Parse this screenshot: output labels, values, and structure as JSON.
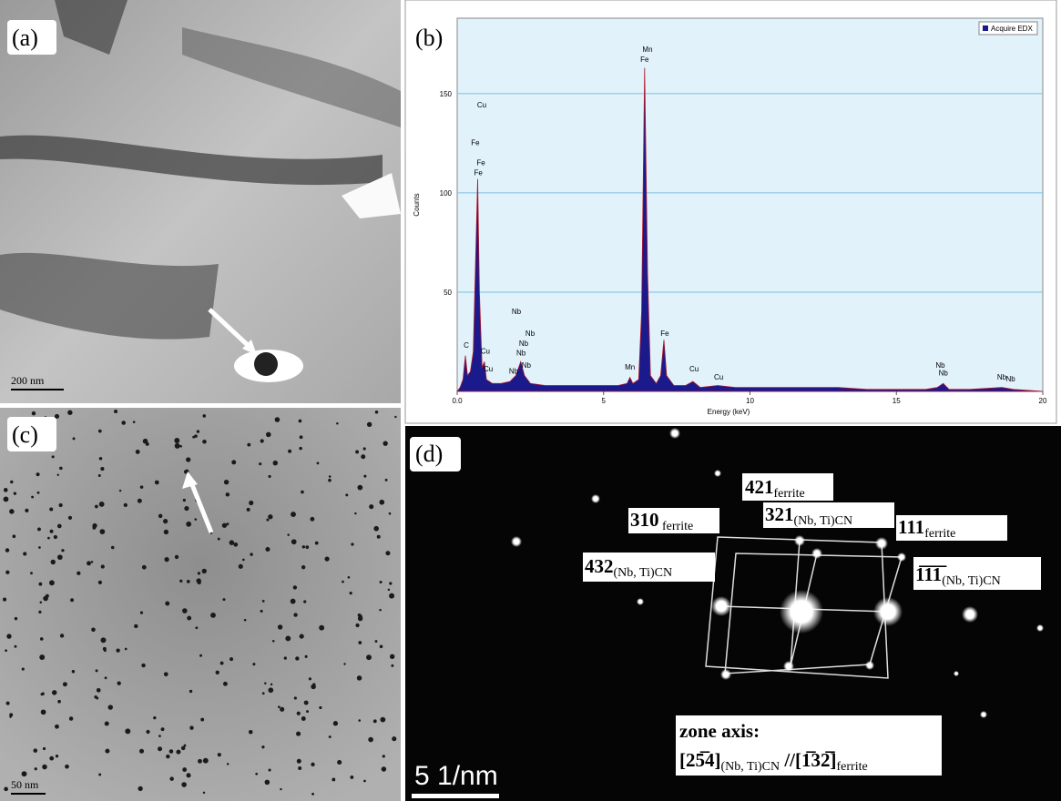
{
  "panels": {
    "a": {
      "label": "(a)",
      "scale_bar": "200 nm"
    },
    "b": {
      "label": "(b)"
    },
    "c": {
      "label": "(c)",
      "scale_bar": "50 nm"
    },
    "d": {
      "label": "(d)",
      "spots": [
        {
          "index": "421",
          "phase": "ferrite"
        },
        {
          "index": "310",
          "phase": " ferrite"
        },
        {
          "index": "321",
          "phase": "(Nb, Ti)CN"
        },
        {
          "index": "111",
          "phase": "ferrite"
        },
        {
          "index": "432",
          "phase": "(Nb, Ti)CN"
        },
        {
          "index": "1̅1̅1̅",
          "phase": "(Nb, Ti)CN"
        }
      ],
      "zone_axis": {
        "title": "zone axis:",
        "dir1": "[25̅4]",
        "phase1": "(Nb, Ti)CN",
        "sep": " //",
        "dir2": "[1̅32̅]",
        "phase2": "ferrite"
      },
      "scale_bar": "5 1/nm"
    }
  },
  "chart_data": {
    "type": "line",
    "xlabel": "Energy (keV)",
    "ylabel": "Counts",
    "xlim": [
      0,
      20
    ],
    "ylim": [
      0,
      188
    ],
    "xticks": [
      {
        "value": 0,
        "label": "0.0"
      },
      5,
      10,
      15,
      20
    ],
    "yticks": [
      50,
      100,
      150
    ],
    "grid": true,
    "legend": "upper right",
    "series": [
      {
        "name": "Acquire EDX",
        "color": "#1a1a8c",
        "x": [
          0,
          0.1,
          0.2,
          0.28,
          0.35,
          0.45,
          0.55,
          0.62,
          0.7,
          0.76,
          0.85,
          0.93,
          1.0,
          1.2,
          1.5,
          1.8,
          2.0,
          2.17,
          2.3,
          2.5,
          3.0,
          3.5,
          4.0,
          4.5,
          5.0,
          5.5,
          5.8,
          5.9,
          6.0,
          6.2,
          6.3,
          6.4,
          6.5,
          6.6,
          6.8,
          6.95,
          7.06,
          7.15,
          7.4,
          7.8,
          8.05,
          8.3,
          8.9,
          9.5,
          10,
          11,
          12,
          13,
          14,
          15,
          16,
          16.4,
          16.6,
          16.8,
          17.5,
          18.6,
          19,
          20
        ],
        "values": [
          0,
          2,
          6,
          18,
          8,
          10,
          20,
          60,
          107,
          50,
          12,
          15,
          6,
          4,
          4,
          5,
          8,
          15,
          8,
          4,
          3,
          3,
          3,
          3,
          3,
          3,
          4,
          7,
          4,
          6,
          40,
          163,
          60,
          8,
          4,
          8,
          26,
          8,
          3,
          3,
          5,
          2,
          3,
          2,
          2,
          2,
          2,
          2,
          1,
          1,
          1,
          2,
          4,
          1,
          1,
          2,
          1,
          0
        ]
      }
    ],
    "annotations": [
      {
        "text": "Cu",
        "x": 0.84,
        "y": 143
      },
      {
        "text": "Fe",
        "x": 0.62,
        "y": 124
      },
      {
        "text": "Fe",
        "x": 0.81,
        "y": 114
      },
      {
        "text": "Fe",
        "x": 0.72,
        "y": 109
      },
      {
        "text": "Mn",
        "x": 6.5,
        "y": 171
      },
      {
        "text": "Fe",
        "x": 6.4,
        "y": 166
      },
      {
        "text": "Nb",
        "x": 2.02,
        "y": 39
      },
      {
        "text": "Nb",
        "x": 2.49,
        "y": 28
      },
      {
        "text": "Nb",
        "x": 2.27,
        "y": 23
      },
      {
        "text": "Nb",
        "x": 2.18,
        "y": 18
      },
      {
        "text": "Nb",
        "x": 2.36,
        "y": 12
      },
      {
        "text": "Nb",
        "x": 1.93,
        "y": 9
      },
      {
        "text": "C",
        "x": 0.31,
        "y": 22
      },
      {
        "text": "Cu",
        "x": 0.96,
        "y": 19
      },
      {
        "text": "Cu",
        "x": 1.06,
        "y": 10
      },
      {
        "text": "Mn",
        "x": 5.9,
        "y": 11
      },
      {
        "text": "Fe",
        "x": 7.09,
        "y": 28
      },
      {
        "text": "Cu",
        "x": 8.09,
        "y": 10
      },
      {
        "text": "Cu",
        "x": 8.93,
        "y": 6
      },
      {
        "text": "Nb",
        "x": 16.5,
        "y": 12
      },
      {
        "text": "Nb",
        "x": 16.6,
        "y": 8
      },
      {
        "text": "Nb",
        "x": 18.6,
        "y": 6
      },
      {
        "text": "Nb",
        "x": 18.9,
        "y": 5
      }
    ]
  }
}
